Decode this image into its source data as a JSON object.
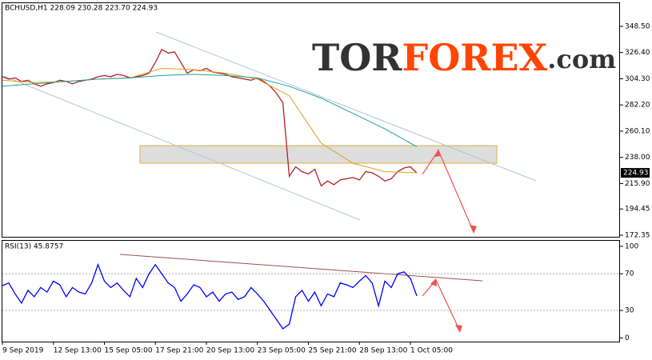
{
  "watermark": {
    "prefix": "TOR",
    "brand": "FOREX",
    "suffix": ".com"
  },
  "chart_data": [
    {
      "type": "line",
      "title": "BCHUSD,H1  228.09 230.28 223.70 224.93",
      "current_price": 224.93,
      "xlim": [
        -3,
        772
      ],
      "ylim": [
        171,
        368
      ],
      "yticks": [
        {
          "value": 348.5,
          "label": "348.50"
        },
        {
          "value": 326.4,
          "label": "326.40"
        },
        {
          "value": 304.3,
          "label": "304.30"
        },
        {
          "value": 282.2,
          "label": "282.20"
        },
        {
          "value": 260.1,
          "label": "260.10"
        },
        {
          "value": 238,
          "label": "238.00"
        },
        {
          "value": 215.9,
          "label": "215.90"
        },
        {
          "value": 194.45,
          "label": "194.45"
        },
        {
          "value": 172.35,
          "label": "172.35"
        }
      ],
      "series": [
        {
          "color": "#b22222",
          "x": [
            0,
            8,
            16,
            24,
            32,
            40,
            48,
            56,
            64,
            72,
            80,
            88,
            96,
            104,
            112,
            120,
            128,
            136,
            144,
            152,
            160,
            168,
            176,
            184,
            192,
            200,
            208,
            216,
            224,
            232,
            240,
            248,
            256,
            264,
            272,
            280,
            288,
            296,
            304,
            312,
            320,
            328,
            336,
            344,
            352,
            360,
            368,
            376,
            384,
            392,
            400,
            408,
            416,
            424,
            432,
            440,
            448,
            456,
            464,
            472,
            480,
            488,
            496,
            504,
            512,
            520
          ],
          "values": [
            306,
            304,
            305,
            302,
            303,
            300,
            298,
            300,
            301,
            303,
            302,
            300,
            302,
            303,
            304,
            306,
            307,
            306,
            308,
            307,
            305,
            306,
            307,
            309,
            318,
            329,
            326,
            327,
            318,
            309,
            312,
            311,
            313,
            310,
            309,
            308,
            306,
            305,
            304,
            303,
            305,
            302,
            298,
            292,
            284,
            222,
            230,
            226,
            224,
            228,
            214,
            218,
            215,
            219,
            220,
            221,
            219,
            226,
            225,
            222,
            218,
            220,
            226,
            229,
            230,
            224.93
          ]
        },
        {
          "color": "#e0a020",
          "x": [
            0,
            40,
            80,
            120,
            160,
            200,
            240,
            280,
            320,
            360,
            380,
            400,
            440,
            480,
            520
          ],
          "values": [
            303,
            301,
            302,
            304,
            305,
            313,
            312,
            309,
            304,
            290,
            270,
            250,
            233,
            226,
            225
          ]
        },
        {
          "color": "#20a0a0",
          "x": [
            0,
            40,
            80,
            120,
            160,
            200,
            240,
            280,
            320,
            360,
            400,
            440,
            480,
            520
          ],
          "values": [
            298,
            300,
            302,
            304,
            305,
            307,
            308,
            307,
            305,
            298,
            288,
            275,
            262,
            247
          ]
        }
      ]
    },
    {
      "type": "line",
      "title": "RSI(13) 45.8757",
      "xlim": [
        -3,
        772
      ],
      "ylim": [
        -4,
        106
      ],
      "yticks": [
        100,
        70,
        30,
        0
      ],
      "xticks": [
        {
          "value": 0,
          "label": "9 Sep 2019"
        },
        {
          "value": 64,
          "label": "12 Sep 13:00"
        },
        {
          "value": 128,
          "label": "15 Sep 05:00"
        },
        {
          "value": 192,
          "label": "17 Sep 21:00"
        },
        {
          "value": 256,
          "label": "20 Sep 13:00"
        },
        {
          "value": 320,
          "label": "23 Sep 05:00"
        },
        {
          "value": 384,
          "label": "25 Sep 21:00"
        },
        {
          "value": 448,
          "label": "28 Sep 13:00"
        },
        {
          "value": 512,
          "label": "1 Oct 05:00"
        }
      ],
      "series": [
        {
          "color": "#0000ff",
          "x": [
            0,
            8,
            16,
            24,
            32,
            40,
            48,
            56,
            64,
            72,
            80,
            88,
            96,
            104,
            112,
            120,
            128,
            136,
            144,
            152,
            160,
            168,
            176,
            184,
            192,
            200,
            208,
            216,
            224,
            232,
            240,
            248,
            256,
            264,
            272,
            280,
            288,
            296,
            304,
            312,
            320,
            328,
            336,
            344,
            352,
            360,
            368,
            376,
            384,
            392,
            400,
            408,
            416,
            424,
            432,
            440,
            448,
            456,
            464,
            472,
            480,
            488,
            496,
            504,
            512,
            520
          ],
          "values": [
            57,
            60,
            48,
            38,
            52,
            45,
            55,
            50,
            62,
            58,
            45,
            55,
            50,
            48,
            60,
            80,
            62,
            55,
            60,
            52,
            45,
            65,
            55,
            70,
            80,
            70,
            60,
            55,
            40,
            48,
            58,
            55,
            45,
            50,
            40,
            48,
            50,
            42,
            45,
            55,
            48,
            40,
            30,
            20,
            10,
            15,
            45,
            52,
            40,
            50,
            35,
            48,
            45,
            60,
            58,
            55,
            62,
            68,
            60,
            35,
            62,
            55,
            70,
            72,
            65,
            45.8757
          ]
        }
      ]
    }
  ]
}
